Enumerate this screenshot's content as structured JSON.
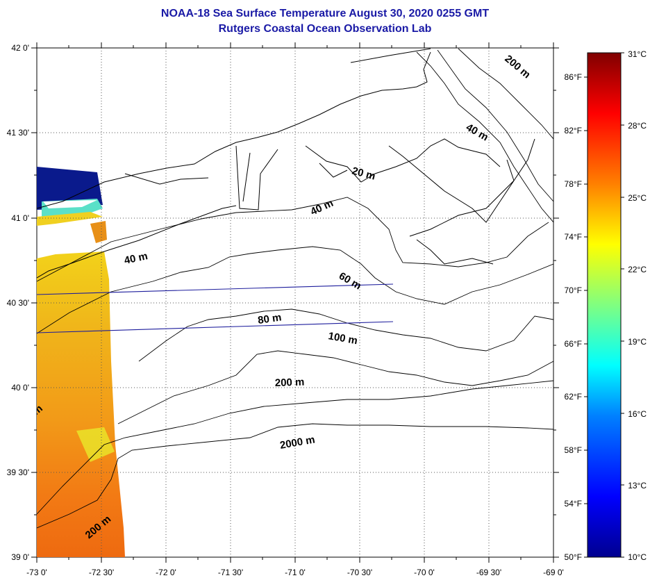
{
  "title": "NOAA-18 Sea Surface Temperature August 30, 2020 0255 GMT",
  "subtitle": "Rutgers Coastal Ocean Observation Lab",
  "map": {
    "lon_labels": [
      "-73 0'",
      "-72 30'",
      "-72 0'",
      "-71 30'",
      "-71 0'",
      "-70 30'",
      "-70 0'",
      "-69 30'",
      "-69 0'"
    ],
    "lat_labels": [
      "42 0'",
      "41 30'",
      "41 0'",
      "40 30'",
      "40 0'",
      "39 30'",
      "39 0'"
    ],
    "lon_range": [
      -73.0,
      -69.0
    ],
    "lat_range": [
      39.0,
      42.0
    ],
    "contour_labels": [
      "200 m",
      "40 m",
      "20 m",
      "40 m",
      "40 m",
      "60 m",
      "80 m",
      "100 m",
      "200 m",
      "2000 m",
      "200 m",
      "m"
    ],
    "fahrenheit_ticks": [
      "86°F",
      "82°F",
      "78°F",
      "74°F",
      "70°F",
      "66°F",
      "62°F",
      "58°F",
      "54°F",
      "50°F"
    ],
    "celsius_ticks": [
      "31°C",
      "28°C",
      "25°C",
      "22°C",
      "19°C",
      "16°C",
      "13°C",
      "10°C"
    ],
    "colorbar_range_c": [
      10,
      31
    ],
    "colors": {
      "title": "#1a1aa6",
      "transect": "#1c1c9c",
      "land_line": "#000000"
    }
  }
}
